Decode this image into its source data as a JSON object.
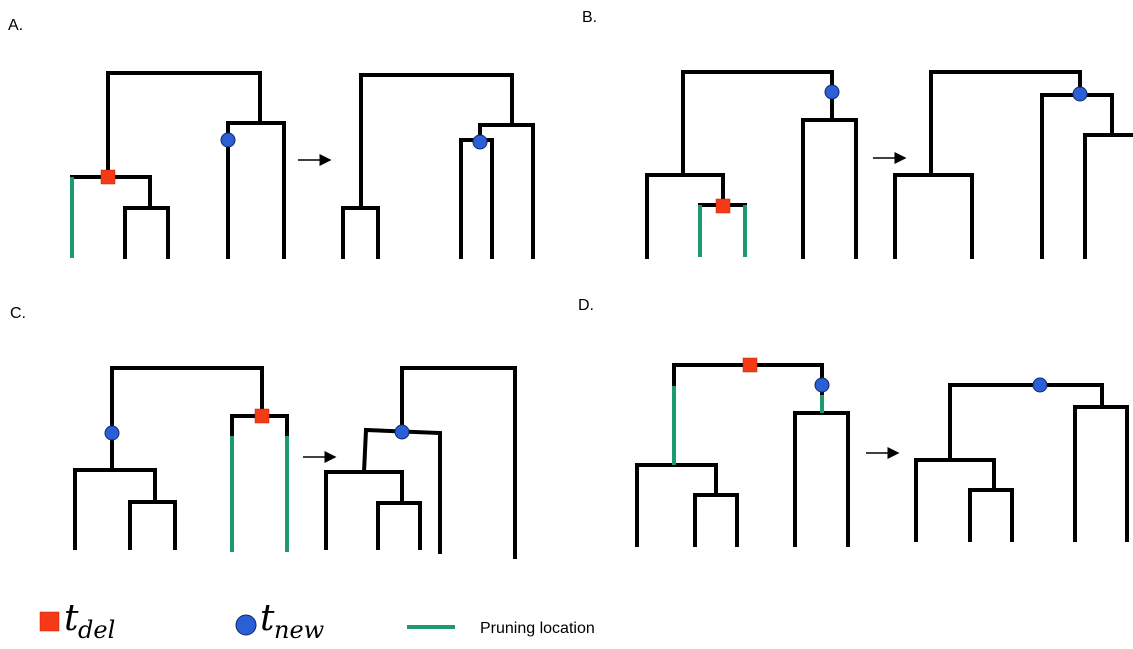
{
  "panels": [
    {
      "label": "A."
    },
    {
      "label": "B."
    },
    {
      "label": "C."
    },
    {
      "label": "D."
    }
  ],
  "legend": [
    {
      "symbol": "t",
      "subscript": "del"
    },
    {
      "symbol": "t",
      "subscript": "new"
    },
    {
      "text": "Pruning location"
    }
  ]
}
